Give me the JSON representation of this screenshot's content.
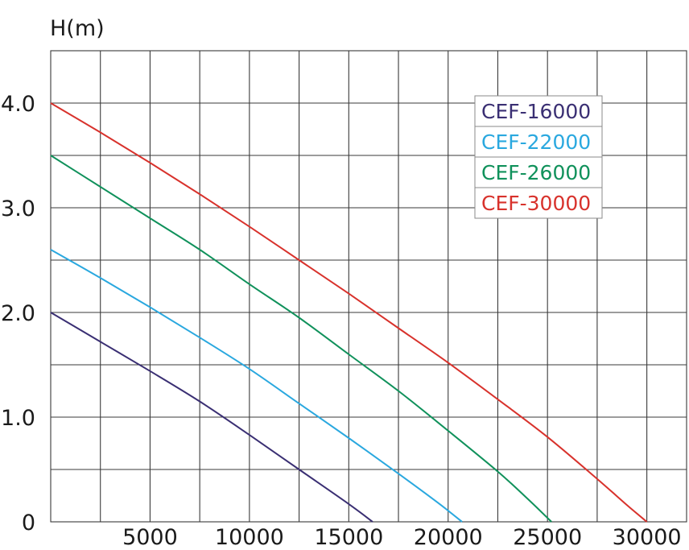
{
  "chart_data": {
    "type": "line",
    "ylabel": "H(m)",
    "xlabel": "",
    "xlim": [
      0,
      32000
    ],
    "ylim": [
      0,
      4.5
    ],
    "x_ticks": [
      5000,
      10000,
      15000,
      20000,
      25000,
      30000
    ],
    "x_tick_labels": [
      "5000",
      "10000",
      "15000",
      "20000",
      "25000",
      "30000"
    ],
    "y_ticks": [
      0,
      1.0,
      2.0,
      3.0,
      4.0
    ],
    "y_tick_labels": [
      "0",
      "1.0",
      "2.0",
      "3.0",
      "4.0"
    ],
    "grid": true,
    "legend_position": "top-right",
    "series": [
      {
        "name": "CEF-16000",
        "color": "#3a2f73",
        "points": [
          [
            0,
            2.0
          ],
          [
            2500,
            1.72
          ],
          [
            5000,
            1.44
          ],
          [
            7500,
            1.15
          ],
          [
            10000,
            0.83
          ],
          [
            12500,
            0.5
          ],
          [
            15000,
            0.17
          ],
          [
            16200,
            0
          ]
        ]
      },
      {
        "name": "CEF-22000",
        "color": "#2aa8df",
        "points": [
          [
            0,
            2.6
          ],
          [
            2500,
            2.33
          ],
          [
            5000,
            2.05
          ],
          [
            7500,
            1.76
          ],
          [
            10000,
            1.46
          ],
          [
            12500,
            1.13
          ],
          [
            15000,
            0.8
          ],
          [
            17500,
            0.46
          ],
          [
            19500,
            0.18
          ],
          [
            20700,
            0
          ]
        ]
      },
      {
        "name": "CEF-26000",
        "color": "#10915b",
        "points": [
          [
            0,
            3.5
          ],
          [
            2500,
            3.2
          ],
          [
            5000,
            2.9
          ],
          [
            7500,
            2.6
          ],
          [
            10000,
            2.27
          ],
          [
            12500,
            1.95
          ],
          [
            15000,
            1.6
          ],
          [
            17500,
            1.25
          ],
          [
            20000,
            0.87
          ],
          [
            22500,
            0.48
          ],
          [
            24000,
            0.22
          ],
          [
            25200,
            0
          ]
        ]
      },
      {
        "name": "CEF-30000",
        "color": "#d8322c",
        "points": [
          [
            0,
            4.0
          ],
          [
            2500,
            3.72
          ],
          [
            5000,
            3.43
          ],
          [
            7500,
            3.13
          ],
          [
            10000,
            2.82
          ],
          [
            12500,
            2.5
          ],
          [
            15000,
            2.18
          ],
          [
            17500,
            1.85
          ],
          [
            20000,
            1.52
          ],
          [
            22500,
            1.17
          ],
          [
            25000,
            0.81
          ],
          [
            27500,
            0.41
          ],
          [
            29000,
            0.16
          ],
          [
            30000,
            0
          ]
        ]
      }
    ]
  }
}
